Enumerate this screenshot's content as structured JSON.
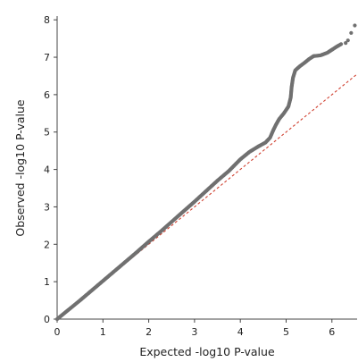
{
  "chart_data": {
    "type": "scatter",
    "title": "",
    "xlabel": "Expected -log10 P-value",
    "ylabel": "Observed -log10 P-value",
    "xlim": [
      0,
      6.55
    ],
    "ylim": [
      0,
      8.1
    ],
    "x_ticks": [
      "0",
      "1",
      "2",
      "3",
      "4",
      "5",
      "6"
    ],
    "y_ticks": [
      "0",
      "1",
      "2",
      "3",
      "4",
      "5",
      "6",
      "7",
      "8"
    ],
    "grid": false,
    "legend": "none",
    "series": [
      {
        "color": "#707070",
        "points": [
          [
            0,
            0
          ],
          [
            0.25,
            0.25
          ],
          [
            0.5,
            0.5
          ],
          [
            0.75,
            0.76
          ],
          [
            1.0,
            1.02
          ],
          [
            1.25,
            1.28
          ],
          [
            1.5,
            1.54
          ],
          [
            1.75,
            1.8
          ],
          [
            2.0,
            2.07
          ],
          [
            2.25,
            2.33
          ],
          [
            2.5,
            2.6
          ],
          [
            2.75,
            2.87
          ],
          [
            3.0,
            3.14
          ],
          [
            3.25,
            3.42
          ],
          [
            3.5,
            3.7
          ],
          [
            3.75,
            3.96
          ],
          [
            4.0,
            4.27
          ],
          [
            4.2,
            4.47
          ],
          [
            4.4,
            4.62
          ],
          [
            4.55,
            4.72
          ],
          [
            4.65,
            4.85
          ],
          [
            4.72,
            5.05
          ],
          [
            4.78,
            5.2
          ],
          [
            4.85,
            5.35
          ],
          [
            4.95,
            5.5
          ],
          [
            5.05,
            5.68
          ],
          [
            5.1,
            5.92
          ],
          [
            5.12,
            6.2
          ],
          [
            5.15,
            6.45
          ],
          [
            5.2,
            6.65
          ],
          [
            5.3,
            6.76
          ],
          [
            5.4,
            6.85
          ],
          [
            5.5,
            6.95
          ],
          [
            5.6,
            7.03
          ],
          [
            5.75,
            7.05
          ],
          [
            5.9,
            7.12
          ],
          [
            6.0,
            7.2
          ],
          [
            6.1,
            7.28
          ],
          [
            6.2,
            7.35
          ],
          [
            6.3,
            7.38
          ],
          [
            6.35,
            7.45
          ],
          [
            6.42,
            7.65
          ],
          [
            6.5,
            7.85
          ]
        ]
      },
      {
        "style": "dashed",
        "color": "#d04030",
        "points": [
          [
            0,
            0
          ],
          [
            6.55,
            6.55
          ]
        ]
      }
    ]
  }
}
